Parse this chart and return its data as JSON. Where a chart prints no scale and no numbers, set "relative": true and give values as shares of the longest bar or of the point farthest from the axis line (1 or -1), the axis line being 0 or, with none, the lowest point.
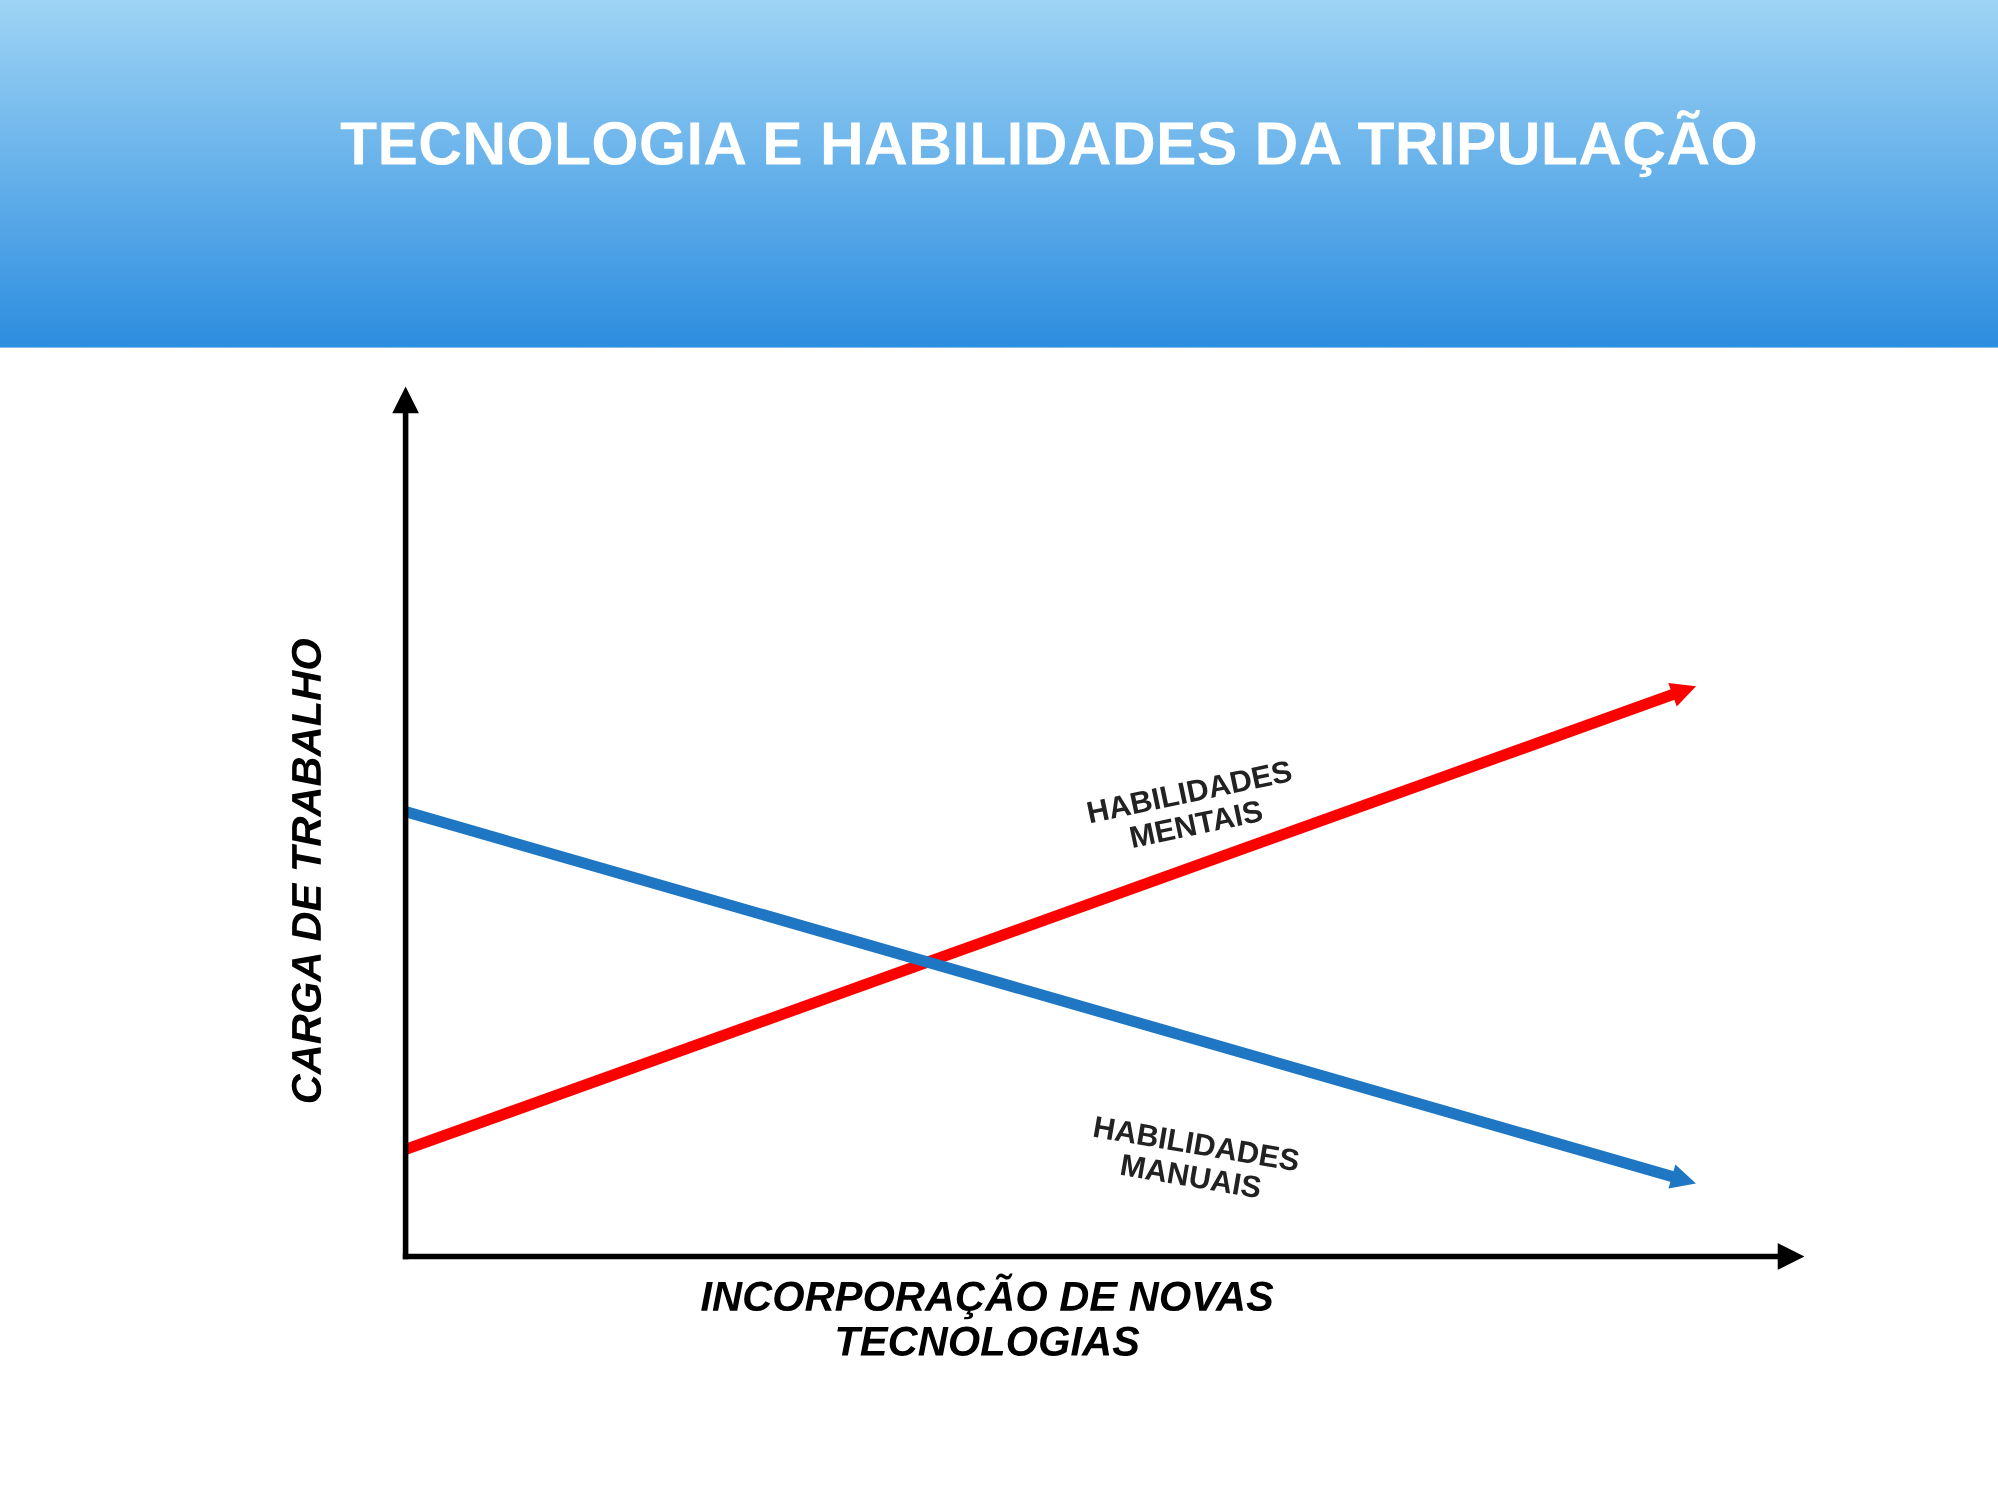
{
  "chart_data": {
    "type": "line",
    "title": "TECNOLOGIA E HABILIDADES DA TRIPULAÇÃO",
    "xlabel": "INCORPORAÇÃO DE NOVAS\nTECNOLOGIAS",
    "ylabel": "CARGA DE TRABALHO",
    "relative": true,
    "categories": [
      null,
      null
    ],
    "legend": false,
    "line_style": "solid",
    "series": [
      {
        "name": "HABILIDADES\nMENTAIS",
        "color": "#ff0000",
        "values": [
          0.19,
          1.0
        ]
      },
      {
        "name": "HABILIDADES\nMANUAIS",
        "color": "#1f77c4",
        "values": [
          0.79,
          0.14
        ]
      }
    ]
  }
}
